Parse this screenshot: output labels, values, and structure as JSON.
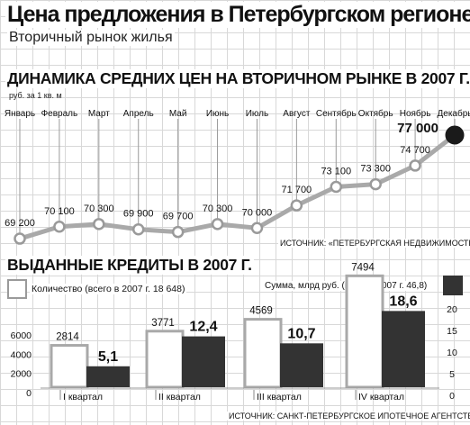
{
  "header": {
    "title": "Цена предложения в Петербургском регионе",
    "subtitle": "Вторичный рынок жилья"
  },
  "colors": {
    "line": "#a9a9a9",
    "count_bar": "#a9a9a9",
    "sum_bar": "#333333",
    "grid": "#d8d8d8"
  },
  "chart_data": [
    {
      "type": "line",
      "title": "ДИНАМИКА СРЕДНИХ ЦЕН НА ВТОРИЧНОМ РЫНКЕ В 2007 Г.",
      "unit": "руб. за 1 кв. м",
      "source": "ИСТОЧНИК: «ПЕТЕРБУРГСКАЯ НЕДВИЖИМОСТЬ»",
      "categories": [
        "Январь",
        "Февраль",
        "Март",
        "Апрель",
        "Май",
        "Июнь",
        "Июль",
        "Август",
        "Сентябрь",
        "Октябрь",
        "Ноябрь",
        "Декабрь"
      ],
      "values": [
        69200,
        70100,
        70300,
        69900,
        69700,
        70300,
        70000,
        71700,
        73100,
        73300,
        74700,
        77000
      ],
      "value_labels": [
        "69 200",
        "70 100",
        "70 300",
        "69 900",
        "69 700",
        "70 300",
        "70 000",
        "71 700",
        "73 100",
        "73 300",
        "74 700",
        "77 000"
      ],
      "highlight_index": 11,
      "ylim": [
        69000,
        77000
      ]
    },
    {
      "type": "bar",
      "title": "ВЫДАННЫЕ КРЕДИТЫ В 2007 Г.",
      "source": "ИСТОЧНИК: САНКТ-ПЕТЕРБУРГСКОЕ ИПОТЕЧНОЕ АГЕНТСТВО",
      "categories": [
        "I квартал",
        "II квартал",
        "III квартал",
        "IV квартал"
      ],
      "series": [
        {
          "name": "Количество (всего в 2007 г. 18 648)",
          "axis": "left",
          "values": [
            2814,
            3771,
            4569,
            7494
          ],
          "labels": [
            "2814",
            "3771",
            "4569",
            "7494"
          ]
        },
        {
          "name": "Сумма, млрд руб. (всего в 2007 г. 46,8)",
          "axis": "right",
          "values": [
            5.1,
            12.4,
            10.7,
            18.6
          ],
          "labels": [
            "5,1",
            "12,4",
            "10,7",
            "18,6"
          ]
        }
      ],
      "left_axis": {
        "ticks": [
          0,
          2000,
          4000,
          6000
        ],
        "ylim": [
          0,
          8000
        ]
      },
      "right_axis": {
        "ticks": [
          0,
          5,
          10,
          15,
          20
        ],
        "ylim": [
          0,
          25
        ]
      }
    }
  ]
}
